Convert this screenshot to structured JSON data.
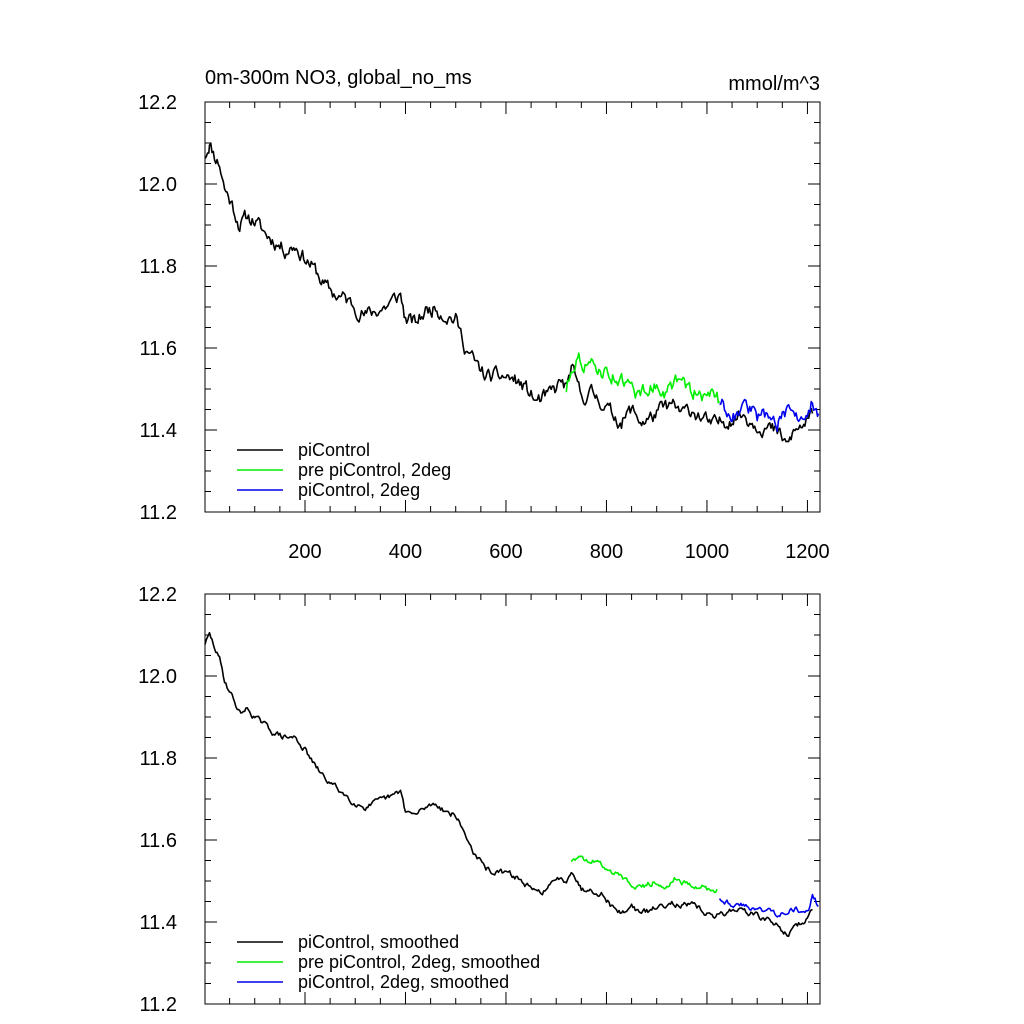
{
  "chart_data": [
    {
      "type": "line",
      "title": "0m-300m NO3, global_no_ms",
      "units": "mmol/m^3",
      "xlim": [
        1,
        1225
      ],
      "ylim": [
        11.2,
        12.2
      ],
      "yticks": [
        "11.2",
        "11.4",
        "11.6",
        "11.8",
        "12.0",
        "12.2"
      ],
      "xticks": [
        "200",
        "400",
        "600",
        "800",
        "1000",
        "1200"
      ],
      "legend_position": "bottom-left",
      "series": [
        {
          "name": "piControl",
          "color": "#000000",
          "x": [
            1,
            10,
            20,
            30,
            40,
            55,
            70,
            85,
            100,
            120,
            140,
            160,
            180,
            200,
            220,
            240,
            260,
            280,
            300,
            320,
            340,
            360,
            380,
            390,
            400,
            420,
            440,
            460,
            480,
            500,
            520,
            540,
            560,
            580,
            600,
            620,
            640,
            660,
            680,
            700,
            710,
            720,
            730,
            750,
            770,
            790,
            810,
            830,
            850,
            870,
            890,
            910,
            930,
            950,
            970,
            990,
            1010,
            1030,
            1050,
            1070,
            1090,
            1110,
            1130,
            1150,
            1160,
            1170,
            1180,
            1200,
            1210
          ],
          "y": [
            12.07,
            12.1,
            12.07,
            12.05,
            11.99,
            11.95,
            11.9,
            11.92,
            11.91,
            11.88,
            11.86,
            11.84,
            11.85,
            11.82,
            11.79,
            11.75,
            11.73,
            11.72,
            11.7,
            11.68,
            11.69,
            11.7,
            11.72,
            11.73,
            11.67,
            11.66,
            11.69,
            11.7,
            11.68,
            11.67,
            11.6,
            11.56,
            11.53,
            11.53,
            11.53,
            11.52,
            11.5,
            11.47,
            11.48,
            11.5,
            11.52,
            11.5,
            11.55,
            11.48,
            11.49,
            11.47,
            11.44,
            11.42,
            11.45,
            11.42,
            11.43,
            11.45,
            11.46,
            11.44,
            11.45,
            11.43,
            11.41,
            11.42,
            11.43,
            11.44,
            11.42,
            11.41,
            11.4,
            11.38,
            11.36,
            11.39,
            11.4,
            11.42,
            11.44
          ]
        },
        {
          "name": "pre piControl, 2deg",
          "color": "#00ee00",
          "x": [
            720,
            730,
            740,
            760,
            780,
            800,
            820,
            840,
            860,
            880,
            900,
            920,
            940,
            960,
            980,
            1000,
            1020,
            1025
          ],
          "y": [
            11.5,
            11.55,
            11.58,
            11.56,
            11.55,
            11.54,
            11.53,
            11.51,
            11.49,
            11.5,
            11.51,
            11.49,
            11.52,
            11.5,
            11.49,
            11.48,
            11.49,
            11.47
          ]
        },
        {
          "name": "piControl, 2deg",
          "color": "#0000ee",
          "x": [
            1025,
            1040,
            1060,
            1080,
            1100,
            1120,
            1140,
            1160,
            1180,
            1200,
            1210,
            1222
          ],
          "y": [
            11.47,
            11.45,
            11.44,
            11.46,
            11.43,
            11.44,
            11.42,
            11.44,
            11.43,
            11.42,
            11.47,
            11.44
          ]
        }
      ]
    },
    {
      "type": "line",
      "title": "",
      "units": "",
      "xlim": [
        1,
        1225
      ],
      "ylim": [
        11.2,
        12.2
      ],
      "yticks": [
        "11.2",
        "11.4",
        "11.6",
        "11.8",
        "12.0",
        "12.2"
      ],
      "xticks": [],
      "legend_position": "bottom-left",
      "series": [
        {
          "name": "piControl, smoothed",
          "color": "#000000",
          "x": [
            1,
            10,
            20,
            30,
            40,
            55,
            70,
            85,
            100,
            120,
            140,
            160,
            180,
            200,
            220,
            240,
            260,
            280,
            300,
            320,
            340,
            360,
            380,
            390,
            400,
            420,
            440,
            460,
            480,
            500,
            520,
            540,
            560,
            580,
            600,
            620,
            640,
            660,
            680,
            700,
            710,
            720,
            730,
            750,
            770,
            790,
            810,
            830,
            850,
            870,
            890,
            910,
            930,
            950,
            970,
            990,
            1010,
            1030,
            1050,
            1070,
            1090,
            1110,
            1130,
            1150,
            1160,
            1170,
            1180,
            1200,
            1210
          ],
          "y": [
            12.08,
            12.1,
            12.07,
            12.04,
            11.99,
            11.95,
            11.91,
            11.92,
            11.9,
            11.88,
            11.86,
            11.85,
            11.85,
            11.82,
            11.78,
            11.75,
            11.73,
            11.71,
            11.69,
            11.68,
            11.69,
            11.7,
            11.71,
            11.72,
            11.67,
            11.66,
            11.68,
            11.69,
            11.67,
            11.66,
            11.61,
            11.56,
            11.53,
            11.52,
            11.52,
            11.51,
            11.49,
            11.47,
            11.48,
            11.5,
            11.51,
            11.5,
            11.53,
            11.48,
            11.48,
            11.47,
            11.44,
            11.42,
            11.44,
            11.42,
            11.43,
            11.44,
            11.45,
            11.44,
            11.44,
            11.43,
            11.41,
            11.42,
            11.43,
            11.43,
            11.42,
            11.41,
            11.4,
            11.38,
            11.37,
            11.38,
            11.39,
            11.41,
            11.43
          ]
        },
        {
          "name": "pre piControl, 2deg, smoothed",
          "color": "#00ee00",
          "x": [
            730,
            740,
            760,
            780,
            800,
            820,
            840,
            860,
            880,
            900,
            920,
            940,
            960,
            980,
            1000,
            1020
          ],
          "y": [
            11.55,
            11.56,
            11.55,
            11.55,
            11.53,
            11.52,
            11.5,
            11.49,
            11.49,
            11.5,
            11.49,
            11.51,
            11.49,
            11.49,
            11.48,
            11.48
          ]
        },
        {
          "name": "piControl, 2deg, smoothed",
          "color": "#0000ee",
          "x": [
            1025,
            1040,
            1060,
            1080,
            1100,
            1120,
            1140,
            1160,
            1180,
            1200,
            1210,
            1222
          ],
          "y": [
            11.46,
            11.45,
            11.44,
            11.44,
            11.43,
            11.43,
            11.42,
            11.43,
            11.43,
            11.42,
            11.46,
            11.44
          ]
        }
      ]
    }
  ]
}
